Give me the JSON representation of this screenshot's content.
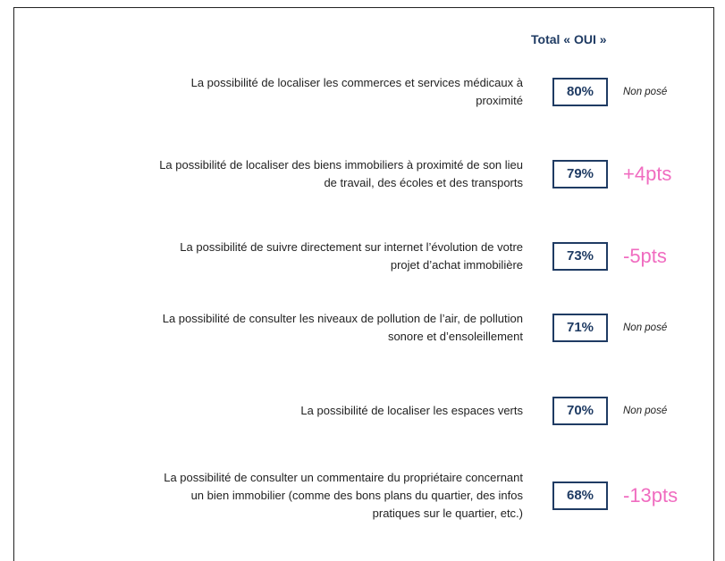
{
  "header": {
    "title": "Total « OUI »"
  },
  "rows": [
    {
      "lines": [
        "La possibilité de localiser les commerces et services médicaux à",
        "proximité"
      ],
      "value": "80%",
      "change": "Non posé"
    },
    {
      "lines": [
        "La possibilité de localiser des biens immobiliers à proximité de son lieu",
        "de travail, des écoles et des transports"
      ],
      "value": "79%",
      "change": "+4pts"
    },
    {
      "lines": [
        "La possibilité de suivre directement sur internet l’évolution de votre",
        "projet d’achat immobilière"
      ],
      "value": "73%",
      "change": "-5pts"
    },
    {
      "lines": [
        "La possibilité de consulter les niveaux de pollution de l’air, de pollution",
        "sonore et d’ensoleillement"
      ],
      "value": "71%",
      "change": "Non posé"
    },
    {
      "lines": [
        "La possibilité de localiser les espaces verts"
      ],
      "value": "70%",
      "change": "Non posé"
    },
    {
      "lines": [
        "La possibilité de consulter un commentaire du propriétaire concernant",
        "un bien immobilier (comme des bons plans du quartier, des infos",
        "pratiques sur le quartier, etc.)"
      ],
      "value": "68%",
      "change": "-13pts"
    }
  ]
}
